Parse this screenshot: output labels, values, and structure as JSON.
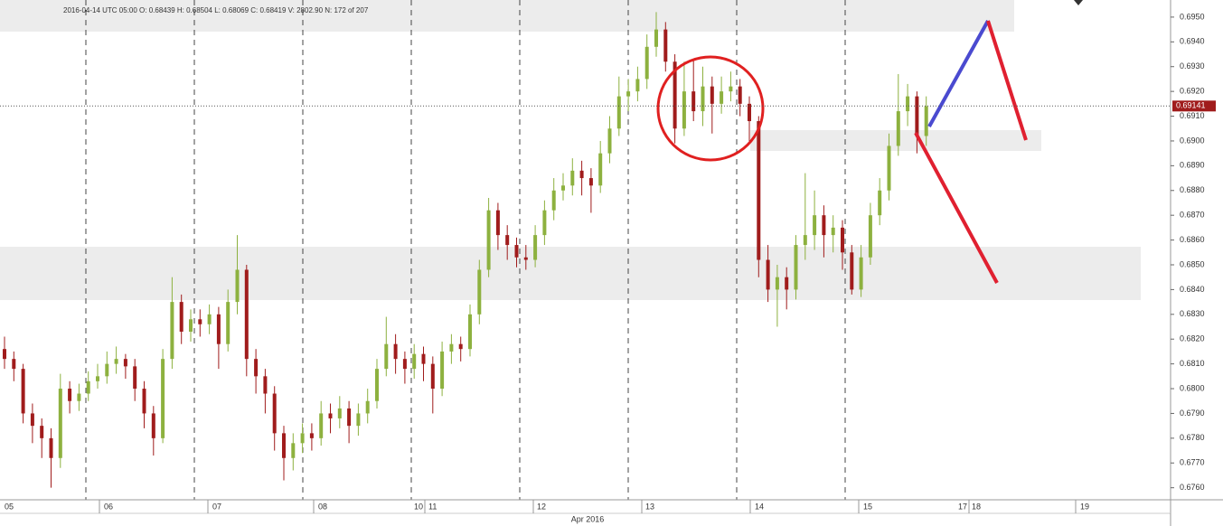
{
  "chart_data": {
    "type": "candlestick",
    "info": "2016-04-14   UTC 05:00   O: 0.68439   H: 0.68504   L: 0.68069   C: 0.68419   V: 2802.90   N: 172 of 207",
    "up_color": "#8db13f",
    "down_color": "#a01c1c",
    "days": [
      "05",
      "06",
      "07",
      "08",
      "10",
      "11",
      "12",
      "13",
      "14",
      "15",
      "17",
      "18",
      "19"
    ],
    "month": "Apr 2016",
    "last_price": 0.69141,
    "ylim": [
      0.67555,
      0.69569
    ],
    "yticks": [
      {
        "value": 0.676,
        "label": "0.6760"
      },
      {
        "value": 0.677,
        "label": "0.6770"
      },
      {
        "value": 0.678,
        "label": "0.6780"
      },
      {
        "value": 0.679,
        "label": "0.6790"
      },
      {
        "value": 0.68,
        "label": "0.6800"
      },
      {
        "value": 0.681,
        "label": "0.6810"
      },
      {
        "value": 0.682,
        "label": "0.6820"
      },
      {
        "value": 0.683,
        "label": "0.6830"
      },
      {
        "value": 0.684,
        "label": "0.6840"
      },
      {
        "value": 0.685,
        "label": "0.6850"
      },
      {
        "value": 0.686,
        "label": "0.6860"
      },
      {
        "value": 0.687,
        "label": "0.6870"
      },
      {
        "value": 0.688,
        "label": "0.6880"
      },
      {
        "value": 0.689,
        "label": "0.6890"
      },
      {
        "value": 0.69,
        "label": "0.6900"
      },
      {
        "value": 0.691,
        "label": "0.6910"
      },
      {
        "value": 0.692,
        "label": "0.6920"
      },
      {
        "value": 0.693,
        "label": "0.6930"
      },
      {
        "value": 0.694,
        "label": "0.6940"
      },
      {
        "value": 0.695,
        "label": "0.6950"
      }
    ],
    "open": [
      0.6816,
      0.6812,
      0.6808,
      0.679,
      0.6785,
      0.678,
      0.6772,
      0.68,
      0.6795,
      0.6798,
      0.6803,
      0.6805,
      0.681,
      0.6812,
      0.6809,
      0.68,
      0.679,
      0.678,
      0.6812,
      0.6835,
      0.6823,
      0.6828,
      0.6826,
      0.683,
      0.6818,
      0.6835,
      0.6848,
      0.6812,
      0.6805,
      0.6798,
      0.6782,
      0.6772,
      0.6778,
      0.6782,
      0.678,
      0.679,
      0.6788,
      0.6792,
      0.6785,
      0.679,
      0.6795,
      0.6808,
      0.6818,
      0.6812,
      0.6808,
      0.6814,
      0.681,
      0.68,
      0.6815,
      0.6818,
      0.6816,
      0.683,
      0.6848,
      0.6872,
      0.6862,
      0.6858,
      0.6853,
      0.6852,
      0.6862,
      0.6872,
      0.688,
      0.6882,
      0.6888,
      0.6885,
      0.6882,
      0.6895,
      0.6905,
      0.6918,
      0.692,
      0.6925,
      0.6938,
      0.6945,
      0.6932,
      0.6905,
      0.692,
      0.6912,
      0.6922,
      0.6915,
      0.692,
      0.6922,
      0.6915,
      0.6908,
      0.6852,
      0.684,
      0.6845,
      0.684,
      0.6858,
      0.6862,
      0.687,
      0.6862,
      0.6865,
      0.6855,
      0.684,
      0.6853,
      0.687,
      0.688,
      0.6898,
      0.6912,
      0.6918,
      0.6902
    ],
    "high": [
      0.6821,
      0.6815,
      0.681,
      0.6794,
      0.6788,
      0.6784,
      0.6806,
      0.6803,
      0.6802,
      0.6807,
      0.681,
      0.6815,
      0.6817,
      0.6814,
      0.6812,
      0.6803,
      0.6793,
      0.6816,
      0.6845,
      0.6838,
      0.6832,
      0.6832,
      0.6834,
      0.6833,
      0.684,
      0.6862,
      0.685,
      0.6816,
      0.6808,
      0.6801,
      0.6785,
      0.6782,
      0.6786,
      0.6786,
      0.6795,
      0.6794,
      0.6797,
      0.6795,
      0.6794,
      0.68,
      0.6812,
      0.6829,
      0.6822,
      0.6815,
      0.6818,
      0.6817,
      0.6813,
      0.6819,
      0.6822,
      0.6821,
      0.6834,
      0.6852,
      0.6877,
      0.6875,
      0.6866,
      0.6861,
      0.6858,
      0.6866,
      0.6876,
      0.6885,
      0.6887,
      0.6893,
      0.6892,
      0.6889,
      0.69,
      0.691,
      0.6926,
      0.6925,
      0.693,
      0.6943,
      0.6952,
      0.6948,
      0.6935,
      0.6932,
      0.6933,
      0.693,
      0.6926,
      0.6926,
      0.6928,
      0.6925,
      0.6918,
      0.691,
      0.6858,
      0.685,
      0.6849,
      0.6862,
      0.6887,
      0.688,
      0.6874,
      0.687,
      0.6868,
      0.6858,
      0.6858,
      0.6875,
      0.6885,
      0.6903,
      0.6927,
      0.6923,
      0.692,
      0.6918
    ],
    "low": [
      0.6808,
      0.6803,
      0.6786,
      0.6778,
      0.6772,
      0.676,
      0.6768,
      0.679,
      0.6791,
      0.6795,
      0.68,
      0.6802,
      0.6806,
      0.6804,
      0.6795,
      0.6784,
      0.6773,
      0.6778,
      0.6808,
      0.6818,
      0.6819,
      0.6821,
      0.6822,
      0.6808,
      0.6815,
      0.683,
      0.6805,
      0.6798,
      0.679,
      0.6775,
      0.6763,
      0.6767,
      0.6774,
      0.6775,
      0.6777,
      0.6782,
      0.6784,
      0.6778,
      0.6781,
      0.6786,
      0.6792,
      0.6805,
      0.6806,
      0.6802,
      0.6804,
      0.6803,
      0.679,
      0.6797,
      0.681,
      0.6811,
      0.6813,
      0.6826,
      0.6845,
      0.6856,
      0.6852,
      0.6849,
      0.6848,
      0.6849,
      0.6858,
      0.6868,
      0.6876,
      0.6878,
      0.6878,
      0.6871,
      0.6879,
      0.6891,
      0.6902,
      0.6912,
      0.6916,
      0.6921,
      0.6934,
      0.6928,
      0.6899,
      0.6902,
      0.6908,
      0.6906,
      0.6903,
      0.6911,
      0.6916,
      0.691,
      0.69,
      0.6845,
      0.6835,
      0.6825,
      0.6832,
      0.6836,
      0.6852,
      0.6856,
      0.6853,
      0.6855,
      0.6848,
      0.6838,
      0.6837,
      0.685,
      0.6866,
      0.6876,
      0.6894,
      0.6906,
      0.6895,
      0.6898
    ],
    "close": [
      0.6812,
      0.6808,
      0.679,
      0.6785,
      0.678,
      0.6772,
      0.68,
      0.6795,
      0.6798,
      0.6803,
      0.6805,
      0.681,
      0.6812,
      0.6809,
      0.68,
      0.679,
      0.678,
      0.6812,
      0.6835,
      0.6823,
      0.6828,
      0.6826,
      0.683,
      0.6818,
      0.6835,
      0.6848,
      0.6812,
      0.6805,
      0.6798,
      0.6782,
      0.6772,
      0.6778,
      0.6782,
      0.678,
      0.679,
      0.6788,
      0.6792,
      0.6785,
      0.679,
      0.6795,
      0.6808,
      0.6818,
      0.6812,
      0.6808,
      0.6814,
      0.681,
      0.68,
      0.6815,
      0.6818,
      0.6816,
      0.683,
      0.6848,
      0.6872,
      0.6862,
      0.6858,
      0.6853,
      0.6852,
      0.6862,
      0.6872,
      0.688,
      0.6882,
      0.6888,
      0.6885,
      0.6882,
      0.6895,
      0.6905,
      0.6918,
      0.692,
      0.6925,
      0.6938,
      0.6945,
      0.6932,
      0.6905,
      0.692,
      0.6912,
      0.6922,
      0.6915,
      0.692,
      0.6922,
      0.6915,
      0.6908,
      0.6852,
      0.684,
      0.6845,
      0.684,
      0.6858,
      0.6862,
      0.687,
      0.6862,
      0.6865,
      0.6855,
      0.684,
      0.6853,
      0.687,
      0.688,
      0.6898,
      0.6912,
      0.6918,
      0.6902,
      0.6914
    ]
  }
}
